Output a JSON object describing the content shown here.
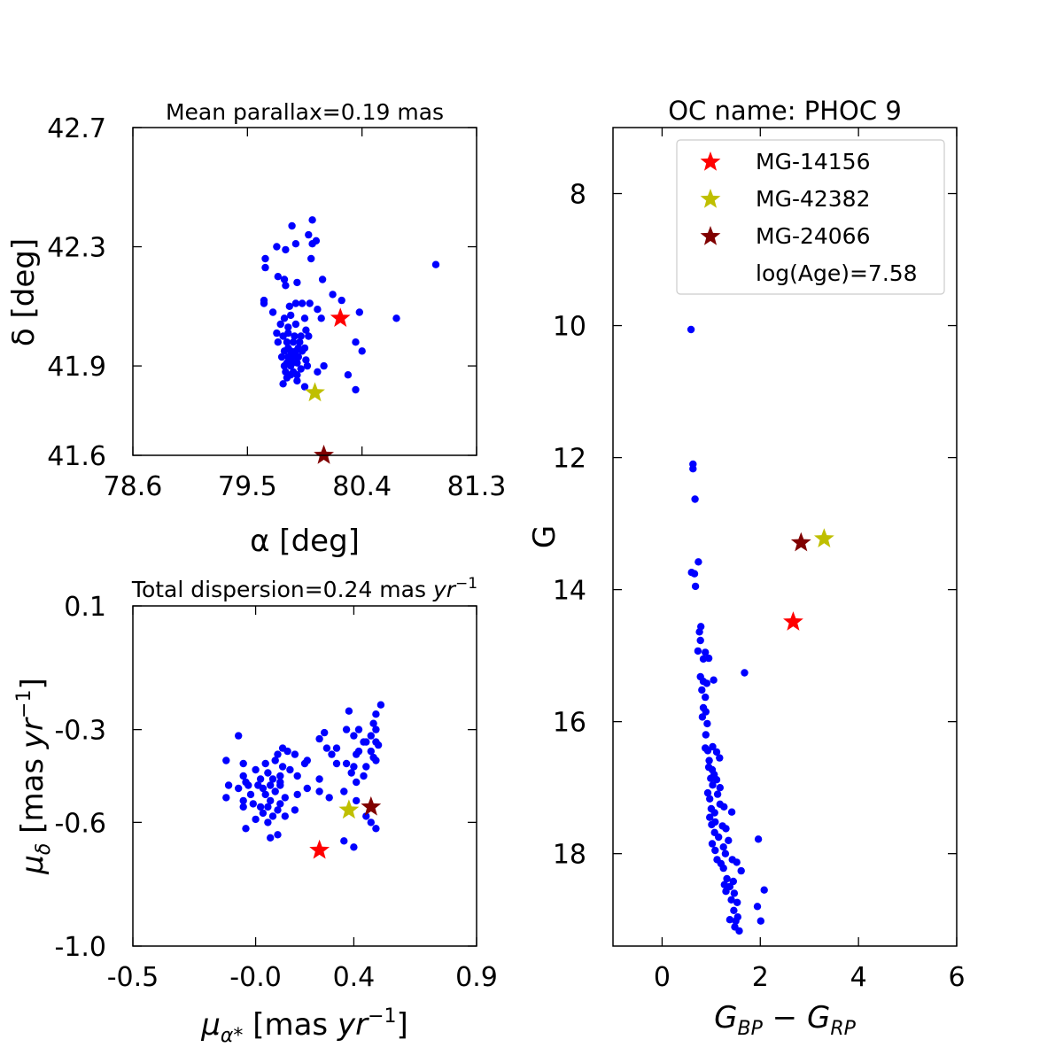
{
  "colors": {
    "members": "#0000ff",
    "MG-14156": "#ff0000",
    "MG-42382": "#bfbf00",
    "MG-24066": "#800000"
  },
  "chart_data": [
    {
      "id": "sky",
      "type": "scatter",
      "title": "Mean parallax=0.19 mas",
      "xlabel": "α [deg]",
      "ylabel": "δ [deg]",
      "xlim": [
        78.6,
        81.3
      ],
      "ylim": [
        41.6,
        42.7
      ],
      "xticks": [
        78.6,
        79.5,
        80.4,
        81.3
      ],
      "xtick_labels": [
        "78.6",
        "79.5",
        "80.4",
        "81.3"
      ],
      "yticks": [
        41.6,
        41.9,
        42.3,
        42.7
      ],
      "ytick_labels": [
        "41.6",
        "41.9",
        "42.3",
        "42.7"
      ],
      "members": [
        [
          80.01,
          42.39
        ],
        [
          79.85,
          42.37
        ],
        [
          79.98,
          42.34
        ],
        [
          80.04,
          42.32
        ],
        [
          80.01,
          42.31
        ],
        [
          79.88,
          42.31
        ],
        [
          79.73,
          42.3
        ],
        [
          79.8,
          42.29
        ],
        [
          80.98,
          42.24
        ],
        [
          80.0,
          42.26
        ],
        [
          79.64,
          42.26
        ],
        [
          79.64,
          42.23
        ],
        [
          79.74,
          42.2
        ],
        [
          79.79,
          42.19
        ],
        [
          79.8,
          42.17
        ],
        [
          79.89,
          42.18
        ],
        [
          80.09,
          42.19
        ],
        [
          80.17,
          42.14
        ],
        [
          80.24,
          42.12
        ],
        [
          79.63,
          42.12
        ],
        [
          79.88,
          42.11
        ],
        [
          79.93,
          42.11
        ],
        [
          79.99,
          42.11
        ],
        [
          80.05,
          42.09
        ],
        [
          79.83,
          42.1
        ],
        [
          79.63,
          42.11
        ],
        [
          79.7,
          42.08
        ],
        [
          79.84,
          42.07
        ],
        [
          79.79,
          42.06
        ],
        [
          80.08,
          42.06
        ],
        [
          79.95,
          42.06
        ],
        [
          80.38,
          42.08
        ],
        [
          80.67,
          42.06
        ],
        [
          79.76,
          42.04
        ],
        [
          79.82,
          42.03
        ],
        [
          79.88,
          42.04
        ],
        [
          79.96,
          42.02
        ],
        [
          79.73,
          42.01
        ],
        [
          79.82,
          42.01
        ],
        [
          79.87,
          42.0
        ],
        [
          79.92,
          42.0
        ],
        [
          79.98,
          42.0
        ],
        [
          79.78,
          42.0
        ],
        [
          79.91,
          41.98
        ],
        [
          79.81,
          41.98
        ],
        [
          79.86,
          41.98
        ],
        [
          79.74,
          41.98
        ],
        [
          80.35,
          41.98
        ],
        [
          79.82,
          41.96
        ],
        [
          79.9,
          41.96
        ],
        [
          79.95,
          41.96
        ],
        [
          79.79,
          41.95
        ],
        [
          79.84,
          41.95
        ],
        [
          79.88,
          41.95
        ],
        [
          79.93,
          41.95
        ],
        [
          80.4,
          41.95
        ],
        [
          79.77,
          41.93
        ],
        [
          79.82,
          41.93
        ],
        [
          79.86,
          41.93
        ],
        [
          79.9,
          41.93
        ],
        [
          79.96,
          41.92
        ],
        [
          79.81,
          41.91
        ],
        [
          79.85,
          41.91
        ],
        [
          79.89,
          41.91
        ],
        [
          80.1,
          41.9
        ],
        [
          79.79,
          41.9
        ],
        [
          79.84,
          41.9
        ],
        [
          79.92,
          41.89
        ],
        [
          79.97,
          41.9
        ],
        [
          79.8,
          41.88
        ],
        [
          79.86,
          41.88
        ],
        [
          79.89,
          41.87
        ],
        [
          80.05,
          41.88
        ],
        [
          79.84,
          41.87
        ],
        [
          80.29,
          41.87
        ],
        [
          79.81,
          41.86
        ],
        [
          79.78,
          41.84
        ],
        [
          79.89,
          41.85
        ],
        [
          79.95,
          41.83
        ],
        [
          80.35,
          41.82
        ]
      ],
      "highlights": [
        {
          "name": "MG-14156",
          "x": 80.23,
          "y": 42.06
        },
        {
          "name": "MG-42382",
          "x": 80.03,
          "y": 41.81
        },
        {
          "name": "MG-24066",
          "x": 80.1,
          "y": 41.6
        }
      ]
    },
    {
      "id": "pm",
      "type": "scatter",
      "title": "Total dispersion=0.24 mas ",
      "title_sup_unit": "yr",
      "title_sup": "−1",
      "xlabel": "μα* [mas yr−1]",
      "ylabel": "μδ [mas yr−1]",
      "xlim": [
        -0.5,
        0.9
      ],
      "ylim": [
        -1.0,
        0.1
      ],
      "xticks": [
        -0.5,
        0.0,
        0.4,
        0.9
      ],
      "xtick_labels": [
        "-0.5",
        "-0.0",
        "0.4",
        "0.9"
      ],
      "yticks": [
        -1.0,
        -0.6,
        -0.3,
        0.1
      ],
      "ytick_labels": [
        "-1.0",
        "-0.6",
        "-0.3",
        "0.1"
      ],
      "members": [
        [
          0.51,
          -0.22
        ],
        [
          0.38,
          -0.24
        ],
        [
          0.49,
          -0.25
        ],
        [
          0.48,
          -0.28
        ],
        [
          0.49,
          -0.3
        ],
        [
          0.37,
          -0.3
        ],
        [
          0.42,
          -0.3
        ],
        [
          0.4,
          -0.32
        ],
        [
          0.47,
          -0.32
        ],
        [
          0.49,
          -0.34
        ],
        [
          0.28,
          -0.31
        ],
        [
          0.26,
          -0.33
        ],
        [
          0.44,
          -0.34
        ],
        [
          0.45,
          -0.34
        ],
        [
          0.5,
          -0.35
        ],
        [
          0.29,
          -0.36
        ],
        [
          0.33,
          -0.36
        ],
        [
          0.42,
          -0.37
        ],
        [
          0.47,
          -0.37
        ],
        [
          0.11,
          -0.36
        ],
        [
          0.13,
          -0.37
        ],
        [
          0.16,
          -0.38
        ],
        [
          -0.07,
          -0.32
        ],
        [
          0.09,
          -0.38
        ],
        [
          0.31,
          -0.38
        ],
        [
          0.41,
          -0.38
        ],
        [
          0.48,
          -0.39
        ],
        [
          0.21,
          -0.4
        ],
        [
          0.49,
          -0.4
        ],
        [
          0.08,
          -0.4
        ],
        [
          0.2,
          -0.41
        ],
        [
          0.33,
          -0.41
        ],
        [
          0.37,
          -0.41
        ],
        [
          0.4,
          -0.42
        ],
        [
          -0.12,
          -0.4
        ],
        [
          -0.05,
          -0.41
        ],
        [
          0.04,
          -0.41
        ],
        [
          0.11,
          -0.42
        ],
        [
          0.45,
          -0.42
        ],
        [
          0.0,
          -0.43
        ],
        [
          0.14,
          -0.43
        ],
        [
          0.05,
          -0.44
        ],
        [
          0.39,
          -0.44
        ],
        [
          -0.05,
          -0.45
        ],
        [
          0.1,
          -0.45
        ],
        [
          0.17,
          -0.45
        ],
        [
          0.44,
          -0.45
        ],
        [
          0.02,
          -0.46
        ],
        [
          0.07,
          -0.46
        ],
        [
          0.26,
          -0.46
        ],
        [
          -0.04,
          -0.47
        ],
        [
          0.1,
          -0.47
        ],
        [
          0.41,
          -0.47
        ],
        [
          -0.11,
          -0.48
        ],
        [
          -0.03,
          -0.48
        ],
        [
          0.01,
          -0.48
        ],
        [
          0.06,
          -0.48
        ],
        [
          0.1,
          -0.48
        ],
        [
          -0.07,
          -0.49
        ],
        [
          0.03,
          -0.49
        ],
        [
          0.21,
          -0.49
        ],
        [
          0.08,
          -0.5
        ],
        [
          0.26,
          -0.5
        ],
        [
          0.36,
          -0.5
        ],
        [
          -0.02,
          -0.51
        ],
        [
          0.04,
          -0.51
        ],
        [
          0.17,
          -0.51
        ],
        [
          0.12,
          -0.52
        ],
        [
          0.3,
          -0.52
        ],
        [
          -0.05,
          -0.53
        ],
        [
          0.06,
          -0.53
        ],
        [
          0.41,
          -0.53
        ],
        [
          -0.12,
          -0.52
        ],
        [
          -0.01,
          -0.54
        ],
        [
          0.1,
          -0.54
        ],
        [
          0.02,
          -0.55
        ],
        [
          0.05,
          -0.55
        ],
        [
          -0.05,
          -0.55
        ],
        [
          0.09,
          -0.56
        ],
        [
          0.16,
          -0.56
        ],
        [
          0.03,
          -0.57
        ],
        [
          0.07,
          -0.58
        ],
        [
          0.12,
          -0.58
        ],
        [
          0.45,
          -0.58
        ],
        [
          0.0,
          -0.59
        ],
        [
          0.05,
          -0.6
        ],
        [
          0.47,
          -0.6
        ],
        [
          0.49,
          -0.62
        ],
        [
          -0.04,
          -0.62
        ],
        [
          0.09,
          -0.64
        ],
        [
          0.06,
          -0.65
        ],
        [
          0.36,
          -0.66
        ],
        [
          0.4,
          -0.68
        ]
      ],
      "highlights": [
        {
          "name": "MG-14156",
          "x": 0.26,
          "y": -0.69
        },
        {
          "name": "MG-42382",
          "x": 0.38,
          "y": -0.56
        },
        {
          "name": "MG-24066",
          "x": 0.47,
          "y": -0.55
        }
      ]
    },
    {
      "id": "cmd",
      "type": "scatter",
      "title": "OC name: PHOC 9",
      "xlabel": "GBP − GRP",
      "ylabel": "G",
      "xlim": [
        -1.0,
        6.0
      ],
      "ylim": [
        19.4,
        7.0
      ],
      "y_inverted": true,
      "xticks": [
        0,
        2,
        4,
        6
      ],
      "xtick_labels": [
        "0",
        "2",
        "4",
        "6"
      ],
      "yticks": [
        8,
        10,
        12,
        14,
        16,
        18
      ],
      "ytick_labels": [
        "8",
        "10",
        "12",
        "14",
        "16",
        "18"
      ],
      "members": [
        [
          0.59,
          10.06
        ],
        [
          0.63,
          12.1
        ],
        [
          0.63,
          12.17
        ],
        [
          0.67,
          12.63
        ],
        [
          0.6,
          13.74
        ],
        [
          0.74,
          13.58
        ],
        [
          0.66,
          13.76
        ],
        [
          0.68,
          13.95
        ],
        [
          0.79,
          14.56
        ],
        [
          0.76,
          14.64
        ],
        [
          0.78,
          14.77
        ],
        [
          0.73,
          14.93
        ],
        [
          0.88,
          14.95
        ],
        [
          0.84,
          15.05
        ],
        [
          0.95,
          15.04
        ],
        [
          0.78,
          15.32
        ],
        [
          0.84,
          15.39
        ],
        [
          0.91,
          15.42
        ],
        [
          0.81,
          15.52
        ],
        [
          0.88,
          15.63
        ],
        [
          1.05,
          15.37
        ],
        [
          1.68,
          15.26
        ],
        [
          0.84,
          15.79
        ],
        [
          0.89,
          15.85
        ],
        [
          0.82,
          15.93
        ],
        [
          0.92,
          16.03
        ],
        [
          0.89,
          16.2
        ],
        [
          0.88,
          16.4
        ],
        [
          0.93,
          16.44
        ],
        [
          1.03,
          16.38
        ],
        [
          1.11,
          16.46
        ],
        [
          0.96,
          16.59
        ],
        [
          1.17,
          16.55
        ],
        [
          0.95,
          16.69
        ],
        [
          1.02,
          16.73
        ],
        [
          1.06,
          16.8
        ],
        [
          0.99,
          16.86
        ],
        [
          1.11,
          16.88
        ],
        [
          1.03,
          16.96
        ],
        [
          1.18,
          17.0
        ],
        [
          0.93,
          17.08
        ],
        [
          1.13,
          17.1
        ],
        [
          0.97,
          17.17
        ],
        [
          1.18,
          17.25
        ],
        [
          1.26,
          17.29
        ],
        [
          1.0,
          17.32
        ],
        [
          1.07,
          17.38
        ],
        [
          1.42,
          17.37
        ],
        [
          0.97,
          17.45
        ],
        [
          1.08,
          17.52
        ],
        [
          1.01,
          17.56
        ],
        [
          1.23,
          17.58
        ],
        [
          1.3,
          17.62
        ],
        [
          1.07,
          17.68
        ],
        [
          1.15,
          17.75
        ],
        [
          1.96,
          17.78
        ],
        [
          1.35,
          17.8
        ],
        [
          1.02,
          17.85
        ],
        [
          1.25,
          17.9
        ],
        [
          1.08,
          17.95
        ],
        [
          1.29,
          18.0
        ],
        [
          1.12,
          18.09
        ],
        [
          1.43,
          18.09
        ],
        [
          1.2,
          18.15
        ],
        [
          1.52,
          18.13
        ],
        [
          1.25,
          18.22
        ],
        [
          1.61,
          18.26
        ],
        [
          1.32,
          18.38
        ],
        [
          1.45,
          18.42
        ],
        [
          1.27,
          18.47
        ],
        [
          1.38,
          18.5
        ],
        [
          2.08,
          18.55
        ],
        [
          1.3,
          18.57
        ],
        [
          1.47,
          18.6
        ],
        [
          1.41,
          18.7
        ],
        [
          1.53,
          18.74
        ],
        [
          1.94,
          18.8
        ],
        [
          1.46,
          18.86
        ],
        [
          1.54,
          18.96
        ],
        [
          1.38,
          19.0
        ],
        [
          1.5,
          19.02
        ],
        [
          2.01,
          19.02
        ],
        [
          1.48,
          19.11
        ],
        [
          1.57,
          19.17
        ]
      ],
      "highlights": [
        {
          "name": "MG-14156",
          "x": 2.67,
          "y": 14.49
        },
        {
          "name": "MG-42382",
          "x": 3.3,
          "y": 13.23
        },
        {
          "name": "MG-24066",
          "x": 2.83,
          "y": 13.29
        }
      ],
      "legend": {
        "placement": "top-right",
        "entries": [
          {
            "label": "MG-14156",
            "marker": "star",
            "color_key": "MG-14156"
          },
          {
            "label": "MG-42382",
            "marker": "star",
            "color_key": "MG-42382"
          },
          {
            "label": "MG-24066",
            "marker": "star",
            "color_key": "MG-24066"
          },
          {
            "label": "log(Age)=7.58",
            "marker": "none"
          }
        ]
      }
    }
  ]
}
